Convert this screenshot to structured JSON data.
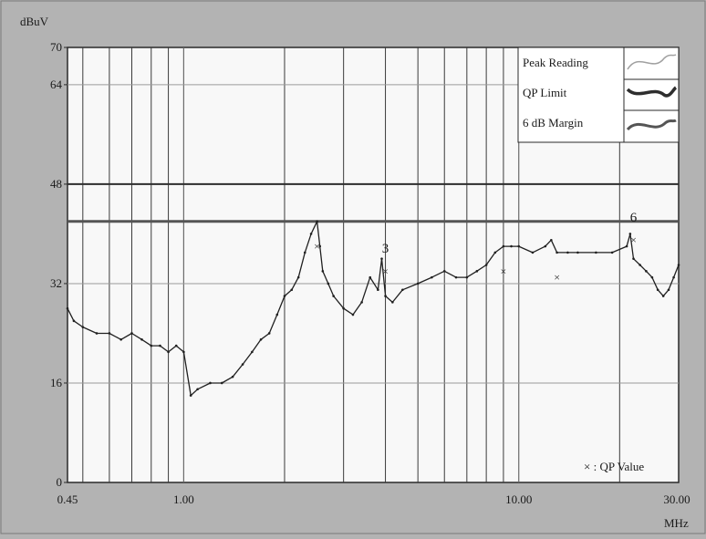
{
  "chart_data": {
    "type": "line",
    "title": "",
    "xlabel": "MHz",
    "ylabel": "dBuV",
    "x_scale": "log",
    "xlim": [
      0.45,
      30
    ],
    "ylim": [
      0,
      70
    ],
    "grid": true,
    "x_ticks": [
      {
        "value": 0.45,
        "label": "0.45"
      },
      {
        "value": 1,
        "label": "1.00"
      },
      {
        "value": 10,
        "label": "10.00"
      },
      {
        "value": 30,
        "label": "30.00"
      }
    ],
    "y_ticks": [
      {
        "value": 0,
        "label": "0"
      },
      {
        "value": 16,
        "label": "16"
      },
      {
        "value": 32,
        "label": "32"
      },
      {
        "value": 48,
        "label": "48"
      },
      {
        "value": 64,
        "label": "64"
      },
      {
        "value": 70,
        "label": "70"
      }
    ],
    "legend": {
      "placement": "top-right",
      "entries": [
        {
          "label": "Peak Reading",
          "color": "#9a9a9a"
        },
        {
          "label": "QP Limit",
          "color": "#2e2e2e"
        },
        {
          "label": "6 dB Margin",
          "color": "#454545"
        }
      ]
    },
    "annotation": "× : QP Value",
    "series": [
      {
        "name": "Peak Reading",
        "color": "#202020",
        "x": [
          0.45,
          0.47,
          0.5,
          0.55,
          0.6,
          0.65,
          0.7,
          0.75,
          0.8,
          0.85,
          0.9,
          0.95,
          1.0,
          1.05,
          1.1,
          1.2,
          1.3,
          1.4,
          1.5,
          1.6,
          1.7,
          1.8,
          1.9,
          2.0,
          2.1,
          2.2,
          2.3,
          2.4,
          2.5,
          2.55,
          2.6,
          2.7,
          2.8,
          3.0,
          3.2,
          3.4,
          3.6,
          3.8,
          3.9,
          4.0,
          4.2,
          4.5,
          5.0,
          5.5,
          6.0,
          6.5,
          7.0,
          7.5,
          8.0,
          8.5,
          9.0,
          9.5,
          10.0,
          11.0,
          12.0,
          12.5,
          13.0,
          14.0,
          15.0,
          17.0,
          19.0,
          21.0,
          21.5,
          22.0,
          23.0,
          24.0,
          25.0,
          26.0,
          27.0,
          28.0,
          29.0,
          30.0
        ],
        "values": [
          28,
          26,
          25,
          24,
          24,
          23,
          24,
          23,
          22,
          22,
          21,
          22,
          21,
          14,
          15,
          16,
          16,
          17,
          19,
          21,
          23,
          24,
          27,
          30,
          31,
          33,
          37,
          40,
          42,
          38,
          34,
          32,
          30,
          28,
          27,
          29,
          33,
          31,
          36,
          30,
          29,
          31,
          32,
          33,
          34,
          33,
          33,
          34,
          35,
          37,
          38,
          38,
          38,
          37,
          38,
          39,
          37,
          37,
          37,
          37,
          37,
          38,
          40,
          36,
          35,
          34,
          33,
          31,
          30,
          31,
          33,
          35
        ]
      }
    ],
    "qp_values": {
      "name": "QP Value",
      "marker": "×",
      "x": [
        2.5,
        4.0,
        9.0,
        13.0,
        22.0
      ],
      "values": [
        38,
        34,
        34,
        33,
        39
      ]
    },
    "marker_labels": [
      {
        "label": "3",
        "x": 4.0,
        "y": 37
      },
      {
        "label": "6",
        "x": 22.0,
        "y": 42
      }
    ]
  }
}
